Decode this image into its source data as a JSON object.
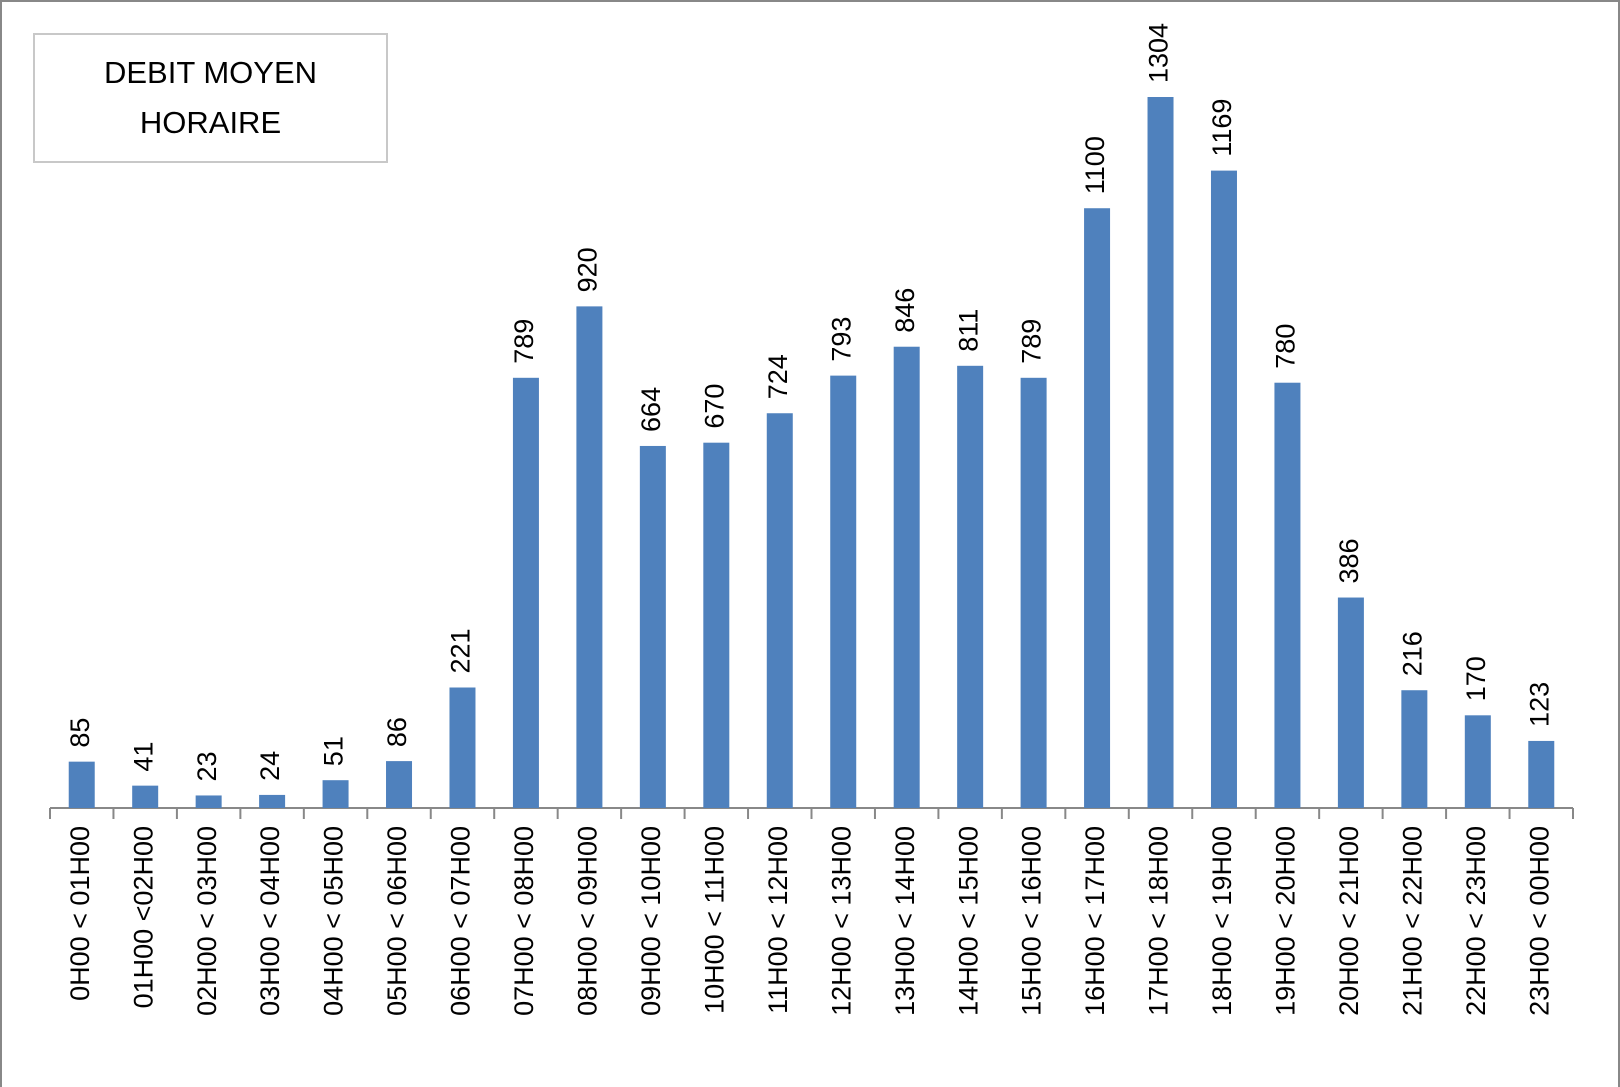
{
  "chart_data": {
    "type": "bar",
    "title": "DEBIT MOYEN HORAIRE",
    "categories": [
      "0H00 < 01H00",
      "01H00 <02H00",
      "02H00 < 03H00",
      "03H00 < 04H00",
      "04H00 < 05H00",
      "05H00 < 06H00",
      "06H00 < 07H00",
      "07H00 < 08H00",
      "08H00 < 09H00",
      "09H00 < 10H00",
      "10H00 < 11H00",
      "11H00 < 12H00",
      "12H00 < 13H00",
      "13H00 < 14H00",
      "14H00 < 15H00",
      "15H00 < 16H00",
      "16H00 < 17H00",
      "17H00 < 18H00",
      "18H00 < 19H00",
      "19H00 < 20H00",
      "20H00 < 21H00",
      "21H00 < 22H00",
      "22H00 < 23H00",
      "23H00 < 00H00"
    ],
    "values": [
      85,
      41,
      23,
      24,
      51,
      86,
      221,
      789,
      920,
      664,
      670,
      724,
      793,
      846,
      811,
      789,
      1100,
      1304,
      1169,
      780,
      386,
      216,
      170,
      123
    ],
    "color": "#4f81bd"
  }
}
